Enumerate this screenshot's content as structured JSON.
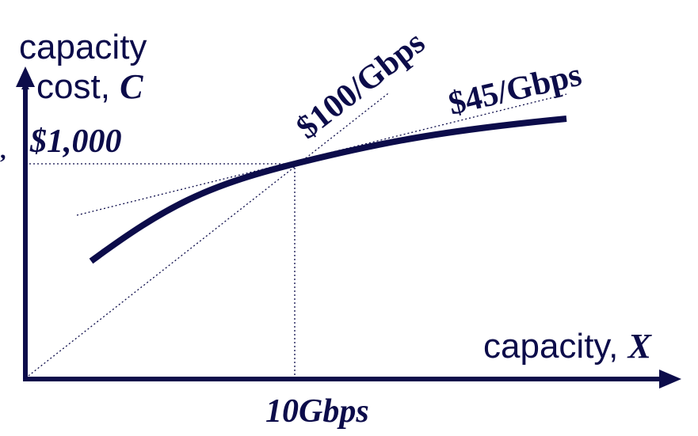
{
  "axes": {
    "y_title_line1": "capacity",
    "y_title_line2_prefix": "cost, ",
    "y_title_line2_var": "C",
    "x_title_prefix": "capacity, ",
    "x_title_var": "X"
  },
  "annotations": {
    "y_mark": "$1,000",
    "x_mark": "10Gbps",
    "steep_slope": "$100/Gbps",
    "shallow_slope": "$45/Gbps",
    "left_edge_comma": ","
  },
  "colors": {
    "ink": "#0c0c4a",
    "background": "#ffffff"
  }
}
